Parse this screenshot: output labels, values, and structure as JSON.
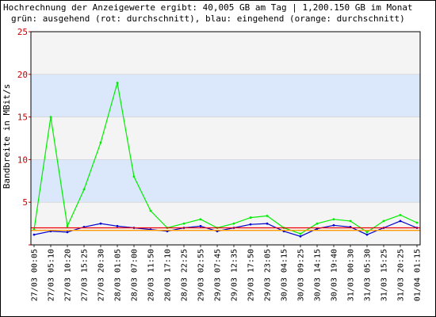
{
  "chart_data": {
    "type": "line",
    "title_lines": [
      "Hochrechnung der Anzeigewerte ergibt: 40,005 GB am Tag | 1,200.150 GB im Monat",
      "grün: ausgehend (rot: durchschnitt), blau: eingehend (orange: durchschnitt)"
    ],
    "ylabel": "Bandbreite in MBit/s",
    "ylim": [
      0,
      25
    ],
    "yticks": [
      0,
      5,
      10,
      15,
      20,
      25
    ],
    "ytick_labels": [
      "",
      "5",
      "10",
      "15",
      "20",
      "25"
    ],
    "band_color": "#dbe7fb",
    "band_alt_color": "#f4f4f4",
    "x": [
      "27/03 00:05",
      "27/03 05:10",
      "27/03 10:20",
      "27/03 15:25",
      "27/03 20:30",
      "28/03 01:05",
      "28/03 07:00",
      "28/03 11:50",
      "28/03 17:10",
      "28/03 22:25",
      "29/03 02:55",
      "29/03 07:45",
      "29/03 12:35",
      "29/03 17:50",
      "29/03 23:05",
      "30/03 04:15",
      "30/03 09:25",
      "30/03 14:15",
      "30/03 19:40",
      "31/03 00:30",
      "31/03 05:30",
      "31/03 15:25",
      "31/03 20:25",
      "01/04 01:15"
    ],
    "series": [
      {
        "color": "#00ee00",
        "values": [
          1.8,
          15.0,
          2.2,
          6.5,
          12.0,
          19.0,
          8.0,
          4.0,
          2.0,
          2.5,
          3.0,
          2.0,
          2.5,
          3.2,
          3.4,
          2.0,
          1.3,
          2.5,
          3.0,
          2.8,
          1.5,
          2.8,
          3.5,
          2.6
        ]
      },
      {
        "color": "#0000cc",
        "values": [
          1.2,
          1.6,
          1.5,
          2.1,
          2.5,
          2.2,
          2.0,
          1.8,
          1.6,
          2.0,
          2.2,
          1.6,
          2.0,
          2.4,
          2.5,
          1.6,
          1.0,
          1.9,
          2.3,
          2.1,
          1.2,
          2.0,
          2.8,
          2.0
        ]
      }
    ],
    "averages": [
      {
        "color": "#ee0000",
        "value": 2.0
      },
      {
        "color": "#ff9900",
        "value": 1.7
      }
    ]
  }
}
